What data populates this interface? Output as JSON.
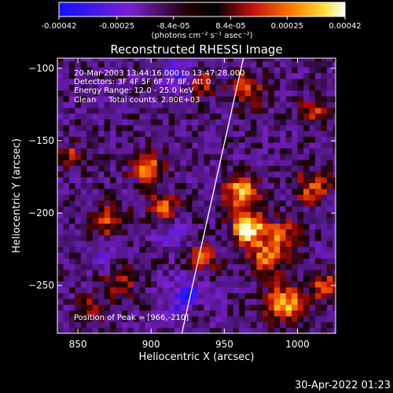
{
  "chart_data": {
    "type": "heatmap",
    "title": "Reconstructed RHESSI Image",
    "xlabel": "Heliocentric X (arcsec)",
    "ylabel": "Heliocentric Y (arcsec)",
    "xlim": [
      836,
      1026
    ],
    "ylim": [
      -283,
      -93
    ],
    "x_ticks": [
      850,
      900,
      950,
      1000
    ],
    "y_ticks": [
      -100,
      -150,
      -200,
      -250
    ],
    "colorbar": {
      "ticks": [
        "-0.00042",
        "-0.00025",
        "-8.4e-05",
        "8.4e-05",
        "0.00025",
        "0.00042"
      ],
      "tick_values": [
        -0.00042,
        -0.00025,
        -8.4e-05,
        8.4e-05,
        0.00025,
        0.00042
      ],
      "range": [
        -0.00042,
        0.00042
      ],
      "unit_label": "(photons cm⁻² s⁻¹ asec⁻²)"
    },
    "info_lines": [
      "20-Mar-2003 13:44:16.000 to 13:47:28.000",
      "Detectors: 3F 4F 5F 6F 7F 8F, Att 0",
      "Energy Range: 12.0 - 25.0 keV",
      "Clean     Total counts: 2.80E+03"
    ],
    "peak_text": "Position of Peak = [966,-210]",
    "peak": {
      "x": 966,
      "y": -210
    },
    "limb_line": [
      {
        "x": 921,
        "y": -283
      },
      {
        "x": 963,
        "y": -93
      }
    ],
    "hotspots": [
      {
        "x": 966,
        "y": -210,
        "strength": 1.0,
        "radius": 8
      },
      {
        "x": 962,
        "y": -185,
        "strength": 0.9,
        "radius": 8
      },
      {
        "x": 992,
        "y": -262,
        "strength": 0.85,
        "radius": 9
      },
      {
        "x": 978,
        "y": -230,
        "strength": 0.6,
        "radius": 9
      },
      {
        "x": 897,
        "y": -168,
        "strength": 0.75,
        "radius": 7
      },
      {
        "x": 908,
        "y": -196,
        "strength": 0.6,
        "radius": 7
      },
      {
        "x": 872,
        "y": -205,
        "strength": 0.55,
        "radius": 8
      },
      {
        "x": 880,
        "y": -245,
        "strength": 0.45,
        "radius": 8
      },
      {
        "x": 1010,
        "y": -182,
        "strength": 0.6,
        "radius": 8
      },
      {
        "x": 965,
        "y": -115,
        "strength": 0.55,
        "radius": 8
      },
      {
        "x": 935,
        "y": -110,
        "strength": 0.5,
        "radius": 7
      },
      {
        "x": 1012,
        "y": -130,
        "strength": 0.45,
        "radius": 7
      },
      {
        "x": 845,
        "y": -160,
        "strength": 0.45,
        "radius": 6
      },
      {
        "x": 990,
        "y": -215,
        "strength": 0.55,
        "radius": 8
      },
      {
        "x": 935,
        "y": -230,
        "strength": 0.55,
        "radius": 7
      },
      {
        "x": 860,
        "y": -265,
        "strength": 0.35,
        "radius": 7
      },
      {
        "x": 930,
        "y": -265,
        "strength": 0.35,
        "radius": 7
      },
      {
        "x": 1018,
        "y": -250,
        "strength": 0.6,
        "radius": 7
      }
    ],
    "coldspots": [
      {
        "x": 925,
        "y": -260,
        "strength": 0.7,
        "radius": 10
      },
      {
        "x": 920,
        "y": -100,
        "strength": 0.5,
        "radius": 9
      },
      {
        "x": 915,
        "y": -215,
        "strength": 0.3,
        "radius": 8
      },
      {
        "x": 870,
        "y": -230,
        "strength": 0.35,
        "radius": 8
      }
    ]
  },
  "timestamp": "30-Apr-2022 01:23"
}
